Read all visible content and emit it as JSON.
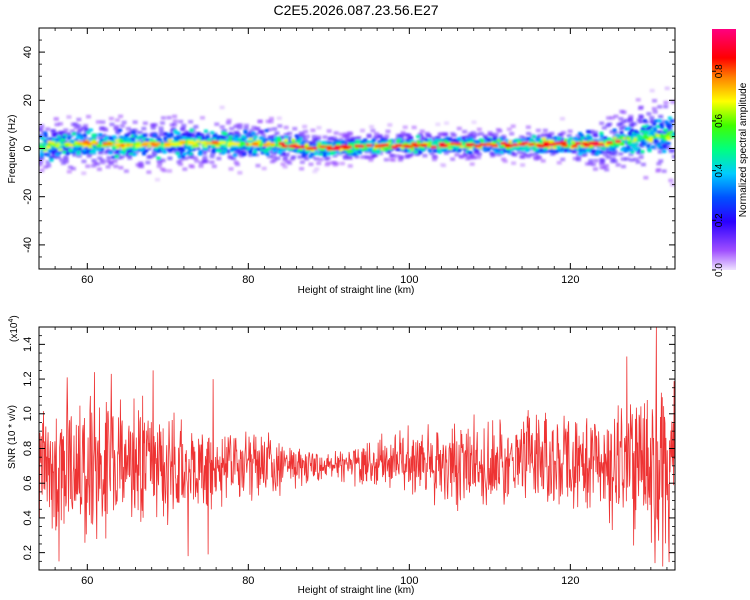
{
  "figure_title": "C2E5.2026.087.23.56.E27",
  "colors": {
    "snr_line": "#ee3333",
    "frame": "#000000",
    "background": "#ffffff"
  },
  "chart_data": [
    {
      "type": "heatmap",
      "title": "C2E5.2026.087.23.56.E27",
      "xlabel": "Height of straight line (km)",
      "ylabel": "Frequency (Hz)",
      "xlim": [
        54,
        133
      ],
      "ylim": [
        -50,
        50
      ],
      "xticks": [
        60,
        80,
        100,
        120
      ],
      "yticks": [
        -40,
        -20,
        0,
        20,
        40
      ],
      "colorbar": {
        "label": "Normalized spectral amplitude",
        "range": [
          0,
          0.97
        ],
        "ticks": [
          "0.0",
          "0.2",
          "0.4",
          "0.6",
          "0.8"
        ],
        "tick_values": [
          0,
          0.2,
          0.4,
          0.6,
          0.8
        ],
        "colormap": "rainbow (violet-blue-cyan-green-yellow-orange-red-magenta)"
      },
      "description_points": {
        "ridge_center_hz": [
          [
            54,
            1
          ],
          [
            60,
            2
          ],
          [
            65,
            1.5
          ],
          [
            70,
            2
          ],
          [
            75,
            2.5
          ],
          [
            80,
            2
          ],
          [
            85,
            1.5
          ],
          [
            88,
            0
          ],
          [
            92,
            0.5
          ],
          [
            96,
            1
          ],
          [
            100,
            1.2
          ],
          [
            105,
            1.5
          ],
          [
            110,
            1.5
          ],
          [
            115,
            1.5
          ],
          [
            120,
            1.5
          ],
          [
            124,
            2
          ],
          [
            128,
            4
          ],
          [
            133,
            6
          ]
        ],
        "spread_hz": [
          [
            54,
            5
          ],
          [
            70,
            5
          ],
          [
            85,
            4
          ],
          [
            90,
            3
          ],
          [
            100,
            3
          ],
          [
            110,
            3
          ],
          [
            120,
            3.5
          ],
          [
            125,
            6
          ],
          [
            133,
            8
          ]
        ]
      }
    },
    {
      "type": "line",
      "xlabel": "Height of straight line (km)",
      "ylabel": "SNR (10 * v/v)",
      "y_multiplier": "(x10",
      "y_multiplier_exp": "4",
      "y_multiplier_close": ")",
      "xlim": [
        54,
        133
      ],
      "ylim": [
        0.1,
        1.5
      ],
      "xticks": [
        60,
        80,
        100,
        120
      ],
      "yticks": [
        0.2,
        0.4,
        0.6,
        0.8,
        1.0,
        1.2,
        1.4
      ],
      "ytick_labels": [
        "0.2",
        "0.4",
        "0.6",
        "0.8",
        "1.0",
        "1.2",
        "1.4"
      ],
      "series": [
        {
          "name": "SNR",
          "mean": [
            [
              54,
              0.7
            ],
            [
              70,
              0.7
            ],
            [
              90,
              0.7
            ],
            [
              100,
              0.72
            ],
            [
              115,
              0.72
            ],
            [
              133,
              0.7
            ]
          ],
          "amplitude": [
            [
              54,
              0.45
            ],
            [
              65,
              0.4
            ],
            [
              80,
              0.22
            ],
            [
              90,
              0.08
            ],
            [
              100,
              0.2
            ],
            [
              110,
              0.28
            ],
            [
              122,
              0.3
            ],
            [
              128,
              0.45
            ],
            [
              133,
              0.55
            ]
          ],
          "peaks": [
            [
              57.5,
              1.21
            ],
            [
              60.9,
              1.24
            ],
            [
              63.0,
              1.23
            ],
            [
              68.2,
              1.25
            ],
            [
              75.6,
              1.2
            ],
            [
              127.0,
              1.33
            ],
            [
              130.7,
              1.5
            ]
          ],
          "troughs": [
            [
              56.5,
              0.15
            ],
            [
              72.5,
              0.18
            ],
            [
              75.0,
              0.19
            ],
            [
              106.0,
              0.44
            ],
            [
              130.5,
              0.14
            ],
            [
              131.5,
              0.12
            ]
          ]
        }
      ]
    }
  ]
}
